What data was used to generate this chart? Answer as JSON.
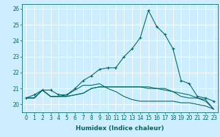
{
  "xlabel": "Humidex (Indice chaleur)",
  "xlim": [
    -0.5,
    23.5
  ],
  "ylim": [
    19.5,
    26.3
  ],
  "yticks": [
    20,
    21,
    22,
    23,
    24,
    25,
    26
  ],
  "xticks": [
    0,
    1,
    2,
    3,
    4,
    5,
    6,
    7,
    8,
    9,
    10,
    11,
    12,
    13,
    14,
    15,
    16,
    17,
    18,
    19,
    20,
    21,
    22,
    23
  ],
  "bg_color": "#cceeff",
  "grid_color": "#ffffff",
  "line_color": "#006666",
  "series": [
    {
      "x": [
        0,
        1,
        2,
        3,
        4,
        5,
        6,
        7,
        8,
        9,
        10,
        11,
        12,
        13,
        14,
        15,
        16,
        17,
        18,
        19,
        20,
        21,
        22,
        23
      ],
      "y": [
        20.4,
        20.6,
        20.9,
        20.9,
        20.6,
        20.6,
        21.0,
        21.5,
        21.8,
        22.2,
        22.3,
        22.3,
        23.0,
        23.5,
        24.2,
        25.9,
        24.9,
        24.4,
        23.5,
        21.5,
        21.3,
        20.5,
        20.4,
        20.2
      ],
      "marker": true
    },
    {
      "x": [
        0,
        1,
        2,
        3,
        4,
        5,
        6,
        7,
        8,
        9,
        10,
        11,
        12,
        13,
        14,
        15,
        16,
        17,
        18,
        19,
        20,
        21,
        22,
        23
      ],
      "y": [
        20.4,
        20.4,
        20.9,
        20.5,
        20.5,
        20.5,
        20.6,
        20.7,
        21.0,
        21.1,
        21.1,
        21.1,
        21.1,
        21.1,
        21.1,
        21.1,
        21.0,
        21.0,
        20.8,
        20.7,
        20.6,
        20.4,
        20.3,
        19.7
      ],
      "marker": false
    },
    {
      "x": [
        0,
        1,
        2,
        3,
        4,
        5,
        6,
        7,
        8,
        9,
        10,
        11,
        12,
        13,
        14,
        15,
        16,
        17,
        18,
        19,
        20,
        21,
        22,
        23
      ],
      "y": [
        20.4,
        20.4,
        20.9,
        20.5,
        20.5,
        20.5,
        20.6,
        20.7,
        21.0,
        21.1,
        21.1,
        21.1,
        21.1,
        21.1,
        21.1,
        21.0,
        21.0,
        20.9,
        20.8,
        20.5,
        20.4,
        20.4,
        20.2,
        19.7
      ],
      "marker": false
    },
    {
      "x": [
        0,
        1,
        2,
        3,
        4,
        5,
        6,
        7,
        8,
        9,
        10,
        11,
        12,
        13,
        14,
        15,
        16,
        17,
        18,
        19,
        20,
        21,
        22,
        23
      ],
      "y": [
        20.4,
        20.4,
        20.9,
        20.5,
        20.5,
        20.6,
        20.9,
        21.2,
        21.2,
        21.3,
        21.0,
        20.8,
        20.5,
        20.3,
        20.2,
        20.2,
        20.2,
        20.2,
        20.2,
        20.1,
        20.1,
        20.0,
        19.9,
        19.7
      ],
      "marker": false
    }
  ],
  "tick_fontsize": 5.5,
  "xlabel_fontsize": 6.5,
  "linewidth": 0.8,
  "marker_size": 3
}
